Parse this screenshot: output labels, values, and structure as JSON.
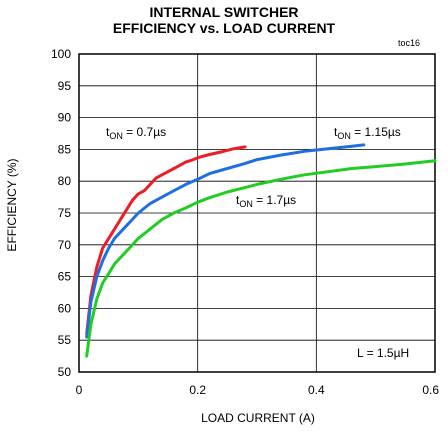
{
  "chart_data": {
    "type": "line",
    "title_line1": "INTERNAL SWITCHER",
    "title_line2": "EFFICIENCY vs. LOAD CURRENT",
    "tag": "toc16",
    "xlabel": "LOAD CURRENT (A)",
    "ylabel": "EFFICIENCY (%)",
    "xlim": [
      0,
      0.6
    ],
    "ylim": [
      50,
      100
    ],
    "xticks": [
      "0",
      "0.2",
      "0.4",
      "0.6"
    ],
    "yticks": [
      "50",
      "55",
      "60",
      "65",
      "70",
      "75",
      "80",
      "85",
      "90",
      "95",
      "100"
    ],
    "grid": true,
    "note": "L = 1.5µH",
    "series": [
      {
        "name": "tON = 0.7µs",
        "label_main": "t",
        "label_sub": "ON",
        "label_rest": " = 0.7µs",
        "color": "#ee1c24",
        "x": [
          0.013,
          0.02,
          0.03,
          0.04,
          0.05,
          0.06,
          0.07,
          0.08,
          0.09,
          0.1,
          0.11,
          0.12,
          0.13,
          0.14,
          0.15,
          0.16,
          0.17,
          0.18,
          0.19,
          0.2,
          0.22,
          0.24,
          0.26,
          0.28
        ],
        "y": [
          56,
          62,
          66.5,
          69.5,
          71,
          72.5,
          74,
          75.5,
          77,
          78,
          78.5,
          79.5,
          80.5,
          81,
          81.5,
          82,
          82.5,
          83,
          83.3,
          83.7,
          84.2,
          84.6,
          85.1,
          85.4
        ]
      },
      {
        "name": "tON = 1.15µs",
        "label_main": "t",
        "label_sub": "ON",
        "label_rest": " = 1.15µs",
        "color": "#1f6fe0",
        "x": [
          0.013,
          0.02,
          0.03,
          0.04,
          0.05,
          0.06,
          0.08,
          0.1,
          0.12,
          0.14,
          0.16,
          0.18,
          0.2,
          0.22,
          0.25,
          0.28,
          0.3,
          0.34,
          0.38,
          0.42,
          0.46,
          0.48
        ],
        "y": [
          55.5,
          61,
          65,
          67.5,
          69.5,
          71,
          73,
          75,
          76.5,
          77.5,
          78.5,
          79.5,
          80.3,
          81.2,
          82,
          82.8,
          83.4,
          84.1,
          84.7,
          85.1,
          85.5,
          85.7
        ]
      },
      {
        "name": "tON = 1.7µs",
        "label_main": "t",
        "label_sub": "ON",
        "label_rest": " = 1.7µs",
        "color": "#22cc22",
        "x": [
          0.013,
          0.02,
          0.03,
          0.04,
          0.05,
          0.06,
          0.08,
          0.1,
          0.12,
          0.14,
          0.16,
          0.18,
          0.2,
          0.22,
          0.25,
          0.28,
          0.3,
          0.34,
          0.38,
          0.42,
          0.46,
          0.5,
          0.55,
          0.6
        ],
        "y": [
          52.5,
          57.5,
          61.5,
          64,
          65.5,
          67,
          69,
          71,
          72.5,
          74,
          75,
          75.8,
          76.7,
          77.4,
          78.3,
          79,
          79.5,
          80.3,
          81,
          81.5,
          82,
          82.3,
          82.7,
          83.2
        ]
      }
    ]
  }
}
